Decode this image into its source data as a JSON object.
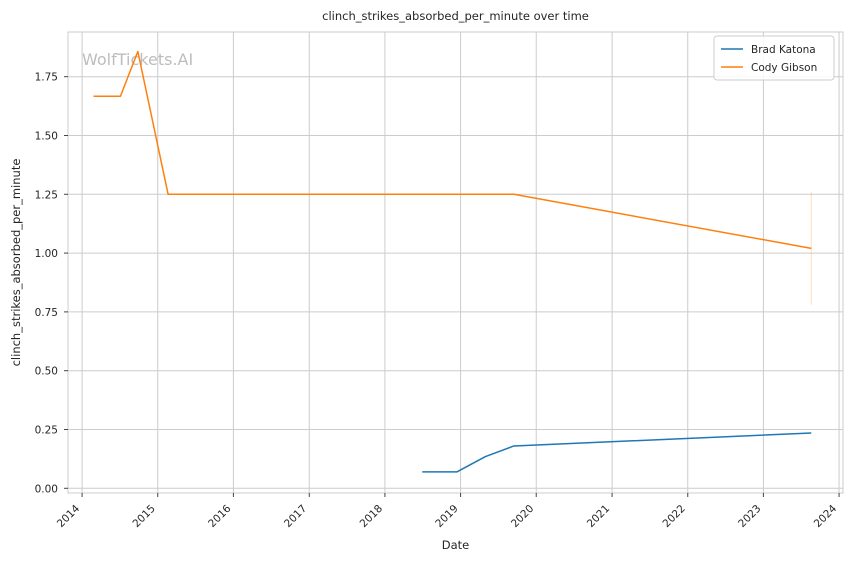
{
  "chart_data": {
    "type": "line",
    "title": "clinch_strikes_absorbed_per_minute over time",
    "xlabel": "Date",
    "ylabel": "clinch_strikes_absorbed_per_minute",
    "watermark": "WolfTickets.AI",
    "grid": true,
    "legend_position": "top-right",
    "xlim": [
      "2013-10-25",
      "2024-01-20"
    ],
    "ylim": [
      -0.02,
      1.94
    ],
    "x_ticks": [
      "2014",
      "2015",
      "2016",
      "2017",
      "2018",
      "2019",
      "2020",
      "2021",
      "2022",
      "2023",
      "2024"
    ],
    "y_ticks": [
      "0.00",
      "0.25",
      "0.50",
      "0.75",
      "1.00",
      "1.25",
      "1.50",
      "1.75"
    ],
    "series": [
      {
        "name": "Brad Katona",
        "color": "#1f77b4",
        "points": [
          {
            "x": "2018-06-30",
            "y": 0.07
          },
          {
            "x": "2018-12-15",
            "y": 0.07
          },
          {
            "x": "2019-05-01",
            "y": 0.135
          },
          {
            "x": "2019-09-15",
            "y": 0.18
          },
          {
            "x": "2023-08-20",
            "y": 0.235
          }
        ]
      },
      {
        "name": "Cody Gibson",
        "color": "#ff7f0e",
        "points": [
          {
            "x": "2014-02-25",
            "y": 1.667
          },
          {
            "x": "2014-07-05",
            "y": 1.667
          },
          {
            "x": "2014-09-27",
            "y": 1.857
          },
          {
            "x": "2015-02-20",
            "y": 1.25
          },
          {
            "x": "2019-09-15",
            "y": 1.25
          },
          {
            "x": "2023-08-20",
            "y": 1.02
          }
        ],
        "error_band": {
          "x": "2023-08-20",
          "y_low": 0.78,
          "y_high": 1.26
        }
      }
    ]
  }
}
